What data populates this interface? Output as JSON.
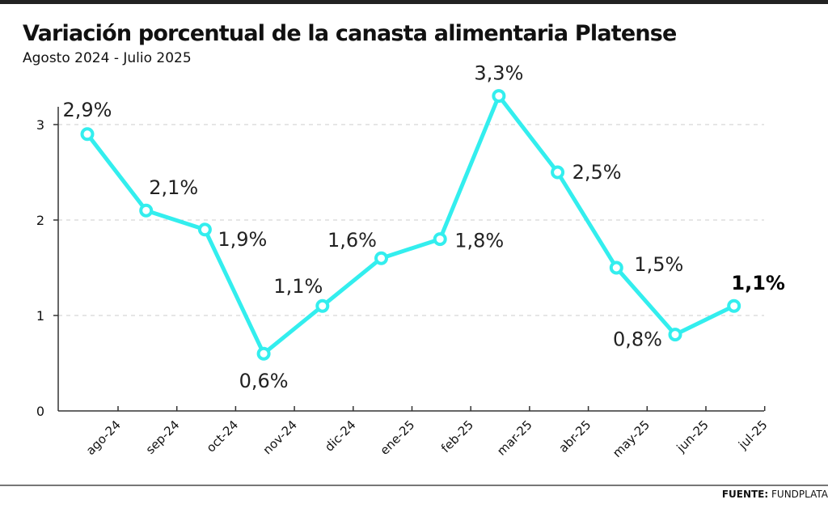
{
  "header": {
    "title": "Variación porcentual de la canasta alimentaria Platense",
    "subtitle": "Agosto 2024 - Julio 2025"
  },
  "footer": {
    "source_label": "FUENTE:",
    "source_name": "FUNDPLATA"
  },
  "colors": {
    "line": "#33eeee",
    "grid": "#cccccc",
    "axis": "#333333"
  },
  "chart_data": {
    "type": "line",
    "categories": [
      "ago-24",
      "sep-24",
      "oct-24",
      "nov-24",
      "dic-24",
      "ene-25",
      "feb-25",
      "mar-25",
      "abr-25",
      "may-25",
      "jun-25",
      "jul-25"
    ],
    "series": [
      {
        "values": [
          2.9,
          2.1,
          1.9,
          0.6,
          1.1,
          1.6,
          1.8,
          3.3,
          2.5,
          1.5,
          0.8,
          1.1
        ],
        "labels": [
          "2,9%",
          "2,1%",
          "1,9%",
          "0,6%",
          "1,1%",
          "1,6%",
          "1,8%",
          "3,3%",
          "2,5%",
          "1,5%",
          "0,8%",
          "1,1%"
        ]
      }
    ],
    "highlighted_label": "jul-25",
    "yticks": [
      0,
      1,
      2,
      3
    ],
    "ylim": [
      0,
      3.3
    ],
    "grid": "horizontal dashed",
    "legend": "none"
  }
}
